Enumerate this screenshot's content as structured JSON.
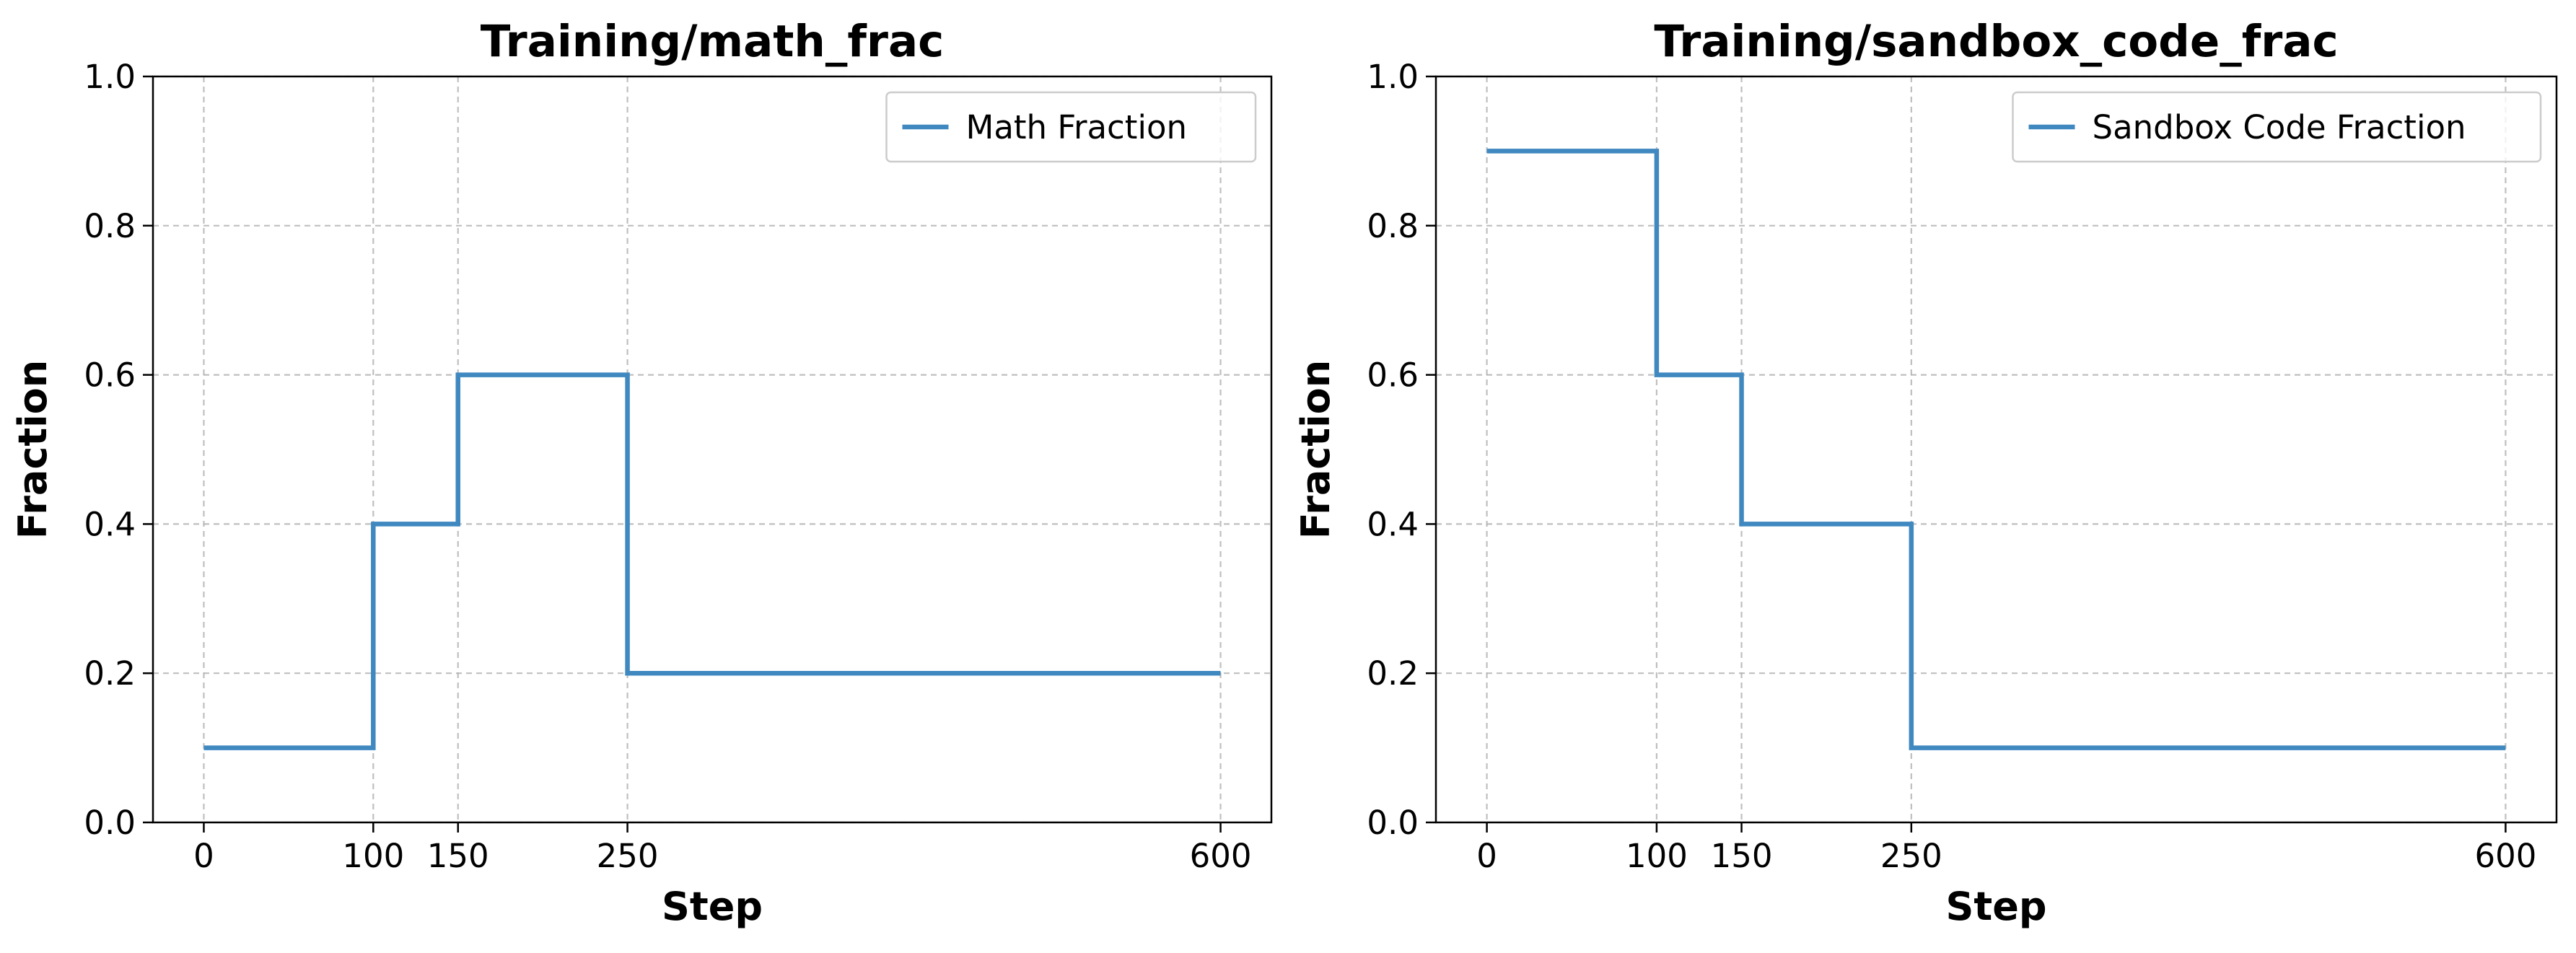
{
  "chart_data": [
    {
      "type": "line",
      "drawstyle": "steps-post",
      "title": "Training/math_frac",
      "xlabel": "Step",
      "ylabel": "Fraction",
      "xticks": [
        0,
        100,
        150,
        250,
        600
      ],
      "yticks": [
        0.0,
        0.2,
        0.4,
        0.6,
        0.8,
        1.0
      ],
      "ytick_labels": [
        "0.0",
        "0.2",
        "0.4",
        "0.6",
        "0.8",
        "1.0"
      ],
      "xlim": [
        -30,
        630
      ],
      "ylim": [
        0.0,
        1.0
      ],
      "grid": true,
      "legend_position": "top-right",
      "series": [
        {
          "name": "Math Fraction",
          "color": "#3f88c0",
          "x": [
            0,
            100,
            150,
            250,
            600
          ],
          "y": [
            0.1,
            0.4,
            0.6,
            0.2,
            0.2
          ]
        }
      ]
    },
    {
      "type": "line",
      "drawstyle": "steps-post",
      "title": "Training/sandbox_code_frac",
      "xlabel": "Step",
      "ylabel": "Fraction",
      "xticks": [
        0,
        100,
        150,
        250,
        600
      ],
      "yticks": [
        0.0,
        0.2,
        0.4,
        0.6,
        0.8,
        1.0
      ],
      "ytick_labels": [
        "0.0",
        "0.2",
        "0.4",
        "0.6",
        "0.8",
        "1.0"
      ],
      "xlim": [
        -30,
        630
      ],
      "ylim": [
        0.0,
        1.0
      ],
      "grid": true,
      "legend_position": "top-right",
      "series": [
        {
          "name": "Sandbox Code Fraction",
          "color": "#3f88c0",
          "x": [
            0,
            100,
            150,
            250,
            600
          ],
          "y": [
            0.9,
            0.6,
            0.4,
            0.1,
            0.1
          ]
        }
      ]
    }
  ]
}
